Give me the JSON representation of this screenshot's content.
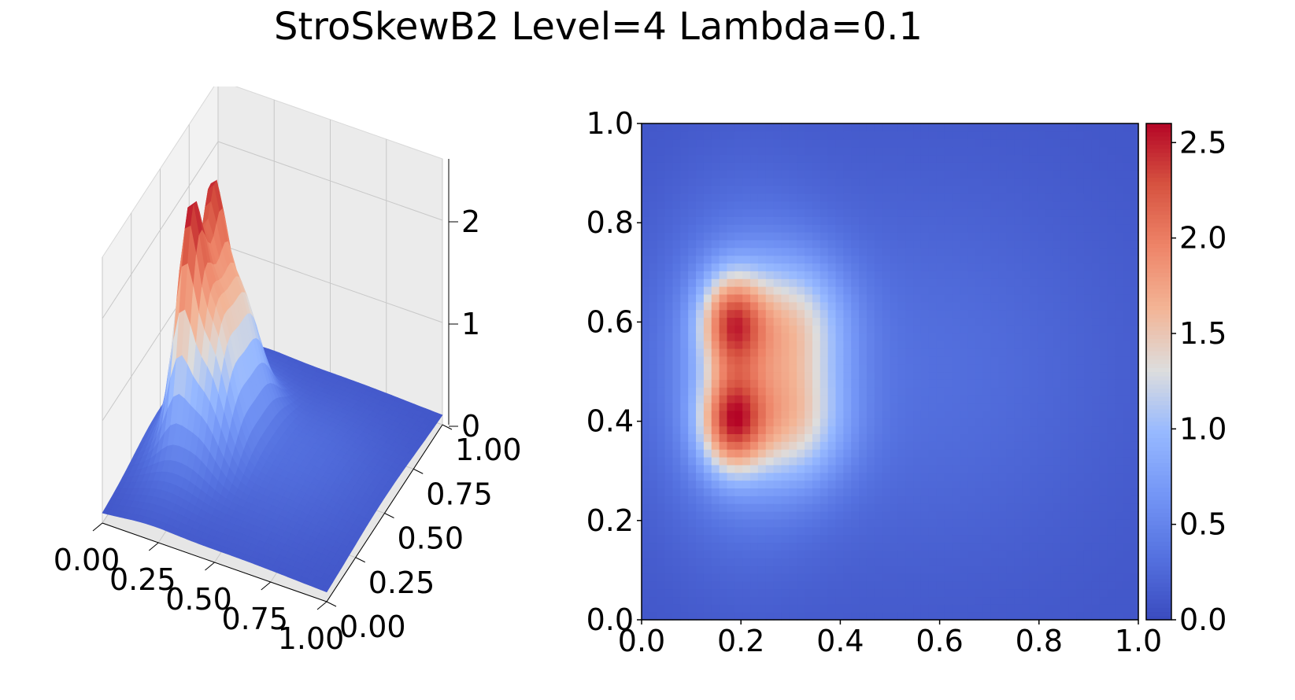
{
  "title": "StroSkewB2 Level=4 Lambda=0.1",
  "chart_data": [
    {
      "type": "surface",
      "title": "",
      "xlabel": "",
      "ylabel": "",
      "zlabel": "",
      "xlim": [
        0,
        1
      ],
      "ylim": [
        0,
        1
      ],
      "zlim": [
        0,
        2.6
      ],
      "x_ticks": [
        "0.00",
        "0.25",
        "0.50",
        "0.75",
        "1.00"
      ],
      "y_ticks": [
        "0.00",
        "0.25",
        "0.50",
        "0.75",
        "1.00"
      ],
      "z_ticks": [
        "0",
        "1",
        "2"
      ],
      "colormap": "coolwarm",
      "grid": true,
      "function": "f(x,y) = sum of Gaussian bumps, peak ~2.6 at x≈0.18, y≈0.4 and y≈0.6, decaying toward x=1"
    },
    {
      "type": "heatmap",
      "title": "",
      "xlabel": "",
      "ylabel": "",
      "xlim": [
        0,
        1
      ],
      "ylim": [
        0,
        1
      ],
      "x_ticks": [
        "0.0",
        "0.2",
        "0.4",
        "0.6",
        "0.8",
        "1.0"
      ],
      "y_ticks": [
        "0.0",
        "0.2",
        "0.4",
        "0.6",
        "0.8",
        "1.0"
      ],
      "colormap": "coolwarm",
      "colorbar": {
        "vmin": 0,
        "vmax": 2.6,
        "ticks": [
          "0.0",
          "0.5",
          "1.0",
          "1.5",
          "2.0",
          "2.5"
        ]
      },
      "grid_resolution": 64,
      "peaks": [
        {
          "x": 0.18,
          "y": 0.4,
          "value": 2.6
        },
        {
          "x": 0.18,
          "y": 0.6,
          "value": 2.5
        },
        {
          "x": 0.32,
          "y": 0.4,
          "value": 1.9
        },
        {
          "x": 0.32,
          "y": 0.6,
          "value": 1.8
        }
      ]
    }
  ]
}
